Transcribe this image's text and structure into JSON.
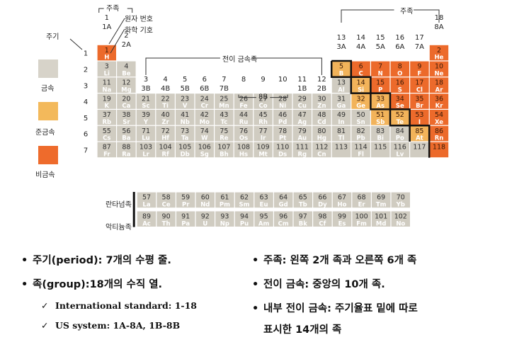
{
  "labels": {
    "period": "주기",
    "main_group_top": "주족",
    "atomic_number": "원자 번호",
    "chemical_symbol": "화학 기호",
    "main_group_right": "주족",
    "transition_metals": "전이 금속족",
    "lanthanides": "란타넘족",
    "actinides": "악티늄족",
    "b8": "8B"
  },
  "legend": [
    {
      "label": "금속",
      "color": "#d7d3c9"
    },
    {
      "label": "준금속",
      "color": "#f3b95b"
    },
    {
      "label": "비금속",
      "color": "#ee6b2c"
    }
  ],
  "colors": {
    "metal": "#d0ccc1",
    "metalloid": "#f2b35a",
    "nonmetal": "#ec6a2b"
  },
  "group_headers": [
    {
      "col": 1,
      "lines": [
        "1",
        "1A"
      ]
    },
    {
      "col": 2,
      "lines": [
        "2",
        "2A"
      ]
    },
    {
      "col": 3,
      "lines": [
        "3",
        "3B"
      ]
    },
    {
      "col": 4,
      "lines": [
        "4",
        "4B"
      ]
    },
    {
      "col": 5,
      "lines": [
        "5",
        "5B"
      ]
    },
    {
      "col": 6,
      "lines": [
        "6",
        "6B"
      ]
    },
    {
      "col": 7,
      "lines": [
        "7",
        "7B"
      ]
    },
    {
      "col": 8,
      "lines": [
        "8",
        ""
      ]
    },
    {
      "col": 9,
      "lines": [
        "9",
        ""
      ]
    },
    {
      "col": 10,
      "lines": [
        "10",
        ""
      ]
    },
    {
      "col": 11,
      "lines": [
        "11",
        "1B"
      ]
    },
    {
      "col": 12,
      "lines": [
        "12",
        "2B"
      ]
    },
    {
      "col": 13,
      "lines": [
        "13",
        "3A"
      ]
    },
    {
      "col": 14,
      "lines": [
        "14",
        "4A"
      ]
    },
    {
      "col": 15,
      "lines": [
        "15",
        "5A"
      ]
    },
    {
      "col": 16,
      "lines": [
        "16",
        "6A"
      ]
    },
    {
      "col": 17,
      "lines": [
        "17",
        "7A"
      ]
    },
    {
      "col": 18,
      "lines": [
        "18",
        "8A"
      ]
    }
  ],
  "periods": [
    "1",
    "2",
    "3",
    "4",
    "5",
    "6",
    "7"
  ],
  "elements": [
    {
      "n": 1,
      "s": "H",
      "t": "nonmetal"
    },
    {
      "n": 2,
      "s": "He",
      "t": "nonmetal"
    },
    {
      "n": 3,
      "s": "Li",
      "t": "metal"
    },
    {
      "n": 4,
      "s": "Be",
      "t": "metal"
    },
    {
      "n": 5,
      "s": "B",
      "t": "metalloid"
    },
    {
      "n": 6,
      "s": "C",
      "t": "nonmetal"
    },
    {
      "n": 7,
      "s": "N",
      "t": "nonmetal"
    },
    {
      "n": 8,
      "s": "O",
      "t": "nonmetal"
    },
    {
      "n": 9,
      "s": "F",
      "t": "nonmetal"
    },
    {
      "n": 10,
      "s": "Ne",
      "t": "nonmetal"
    },
    {
      "n": 11,
      "s": "Na",
      "t": "metal"
    },
    {
      "n": 12,
      "s": "Mg",
      "t": "metal"
    },
    {
      "n": 13,
      "s": "Al",
      "t": "metal"
    },
    {
      "n": 14,
      "s": "Si",
      "t": "metalloid"
    },
    {
      "n": 15,
      "s": "P",
      "t": "nonmetal"
    },
    {
      "n": 16,
      "s": "S",
      "t": "nonmetal"
    },
    {
      "n": 17,
      "s": "Cl",
      "t": "nonmetal"
    },
    {
      "n": 18,
      "s": "Ar",
      "t": "nonmetal"
    },
    {
      "n": 19,
      "s": "K",
      "t": "metal"
    },
    {
      "n": 20,
      "s": "Ca",
      "t": "metal"
    },
    {
      "n": 21,
      "s": "Sc",
      "t": "metal"
    },
    {
      "n": 22,
      "s": "Ti",
      "t": "metal"
    },
    {
      "n": 23,
      "s": "V",
      "t": "metal"
    },
    {
      "n": 24,
      "s": "Cr",
      "t": "metal"
    },
    {
      "n": 25,
      "s": "Mn",
      "t": "metal"
    },
    {
      "n": 26,
      "s": "Fe",
      "t": "metal"
    },
    {
      "n": 27,
      "s": "Co",
      "t": "metal"
    },
    {
      "n": 28,
      "s": "Ni",
      "t": "metal"
    },
    {
      "n": 29,
      "s": "Cu",
      "t": "metal"
    },
    {
      "n": 30,
      "s": "Zn",
      "t": "metal"
    },
    {
      "n": 31,
      "s": "Ga",
      "t": "metal"
    },
    {
      "n": 32,
      "s": "Ge",
      "t": "metalloid"
    },
    {
      "n": 33,
      "s": "As",
      "t": "metalloid"
    },
    {
      "n": 34,
      "s": "Se",
      "t": "nonmetal"
    },
    {
      "n": 35,
      "s": "Br",
      "t": "nonmetal"
    },
    {
      "n": 36,
      "s": "Kr",
      "t": "nonmetal"
    },
    {
      "n": 37,
      "s": "Rb",
      "t": "metal"
    },
    {
      "n": 38,
      "s": "Sr",
      "t": "metal"
    },
    {
      "n": 39,
      "s": "Y",
      "t": "metal"
    },
    {
      "n": 40,
      "s": "Zr",
      "t": "metal"
    },
    {
      "n": 41,
      "s": "Nb",
      "t": "metal"
    },
    {
      "n": 42,
      "s": "Mo",
      "t": "metal"
    },
    {
      "n": 43,
      "s": "Tc",
      "t": "metal"
    },
    {
      "n": 44,
      "s": "Ru",
      "t": "metal"
    },
    {
      "n": 45,
      "s": "Rh",
      "t": "metal"
    },
    {
      "n": 46,
      "s": "Pd",
      "t": "metal"
    },
    {
      "n": 47,
      "s": "Ag",
      "t": "metal"
    },
    {
      "n": 48,
      "s": "Cd",
      "t": "metal"
    },
    {
      "n": 49,
      "s": "In",
      "t": "metal"
    },
    {
      "n": 50,
      "s": "Sn",
      "t": "metal"
    },
    {
      "n": 51,
      "s": "Sb",
      "t": "metalloid"
    },
    {
      "n": 52,
      "s": "Te",
      "t": "metalloid"
    },
    {
      "n": 53,
      "s": "I",
      "t": "nonmetal"
    },
    {
      "n": 54,
      "s": "Xe",
      "t": "nonmetal"
    },
    {
      "n": 55,
      "s": "Cs",
      "t": "metal"
    },
    {
      "n": 56,
      "s": "Ba",
      "t": "metal"
    },
    {
      "n": 71,
      "s": "Lu",
      "t": "metal"
    },
    {
      "n": 72,
      "s": "Hf",
      "t": "metal"
    },
    {
      "n": 73,
      "s": "Ta",
      "t": "metal"
    },
    {
      "n": 74,
      "s": "W",
      "t": "metal"
    },
    {
      "n": 75,
      "s": "Re",
      "t": "metal"
    },
    {
      "n": 76,
      "s": "Os",
      "t": "metal"
    },
    {
      "n": 77,
      "s": "Ir",
      "t": "metal"
    },
    {
      "n": 78,
      "s": "Pt",
      "t": "metal"
    },
    {
      "n": 79,
      "s": "Au",
      "t": "metal"
    },
    {
      "n": 80,
      "s": "Hg",
      "t": "metal"
    },
    {
      "n": 81,
      "s": "Tl",
      "t": "metal"
    },
    {
      "n": 82,
      "s": "Pb",
      "t": "metal"
    },
    {
      "n": 83,
      "s": "Bi",
      "t": "metal"
    },
    {
      "n": 84,
      "s": "Po",
      "t": "metal"
    },
    {
      "n": 85,
      "s": "At",
      "t": "metalloid"
    },
    {
      "n": 86,
      "s": "Rn",
      "t": "nonmetal"
    },
    {
      "n": 87,
      "s": "Fr",
      "t": "metal"
    },
    {
      "n": 88,
      "s": "Ra",
      "t": "metal"
    },
    {
      "n": 103,
      "s": "Lr",
      "t": "metal"
    },
    {
      "n": 104,
      "s": "Rf",
      "t": "metal"
    },
    {
      "n": 105,
      "s": "Db",
      "t": "metal"
    },
    {
      "n": 106,
      "s": "Sg",
      "t": "metal"
    },
    {
      "n": 107,
      "s": "Bh",
      "t": "metal"
    },
    {
      "n": 108,
      "s": "Hs",
      "t": "metal"
    },
    {
      "n": 109,
      "s": "Mt",
      "t": "metal"
    },
    {
      "n": 110,
      "s": "Ds",
      "t": "metal"
    },
    {
      "n": 111,
      "s": "Rg",
      "t": "metal"
    },
    {
      "n": 112,
      "s": "Cn",
      "t": "metal"
    },
    {
      "n": 113,
      "s": "",
      "t": "metal"
    },
    {
      "n": 114,
      "s": "Fl",
      "t": "metal"
    },
    {
      "n": 115,
      "s": "",
      "t": "metal"
    },
    {
      "n": 116,
      "s": "Lv",
      "t": "metal"
    },
    {
      "n": 117,
      "s": "",
      "t": "metal"
    },
    {
      "n": 118,
      "s": "",
      "t": "nonmetal"
    }
  ],
  "lanthanides": [
    {
      "n": 57,
      "s": "La"
    },
    {
      "n": 58,
      "s": "Ce"
    },
    {
      "n": 59,
      "s": "Pr"
    },
    {
      "n": 60,
      "s": "Nd"
    },
    {
      "n": 61,
      "s": "Pm"
    },
    {
      "n": 62,
      "s": "Sm"
    },
    {
      "n": 63,
      "s": "Eu"
    },
    {
      "n": 64,
      "s": "Gd"
    },
    {
      "n": 65,
      "s": "Tb"
    },
    {
      "n": 66,
      "s": "Dy"
    },
    {
      "n": 67,
      "s": "Ho"
    },
    {
      "n": 68,
      "s": "Er"
    },
    {
      "n": 69,
      "s": "Tm"
    },
    {
      "n": 70,
      "s": "Yb"
    }
  ],
  "actinides": [
    {
      "n": 89,
      "s": "Ac"
    },
    {
      "n": 90,
      "s": "Th"
    },
    {
      "n": 91,
      "s": "Pa"
    },
    {
      "n": 92,
      "s": "U"
    },
    {
      "n": 93,
      "s": "Np"
    },
    {
      "n": 94,
      "s": "Pu"
    },
    {
      "n": 95,
      "s": "Am"
    },
    {
      "n": 96,
      "s": "Cm"
    },
    {
      "n": 97,
      "s": "Bk"
    },
    {
      "n": 98,
      "s": "Cf"
    },
    {
      "n": 99,
      "s": "Es"
    },
    {
      "n": 100,
      "s": "Fm"
    },
    {
      "n": 101,
      "s": "Md"
    },
    {
      "n": 102,
      "s": "No"
    }
  ],
  "bullets_left": [
    "주기(period): 7개의 수평 줄.",
    "족(group):18개의 수직 열."
  ],
  "sub_items": [
    "International standard: 1-18",
    "US system: 1A-8A, 1B-8B"
  ],
  "bullets_right": [
    "주족: 왼쪽 2개 족과 오른쪽 6개 족",
    "전이 금속: 중앙의 10개 족.",
    "내부 전이 금속: 주기율표 밑에 따로",
    "표시한 14개의 족"
  ]
}
